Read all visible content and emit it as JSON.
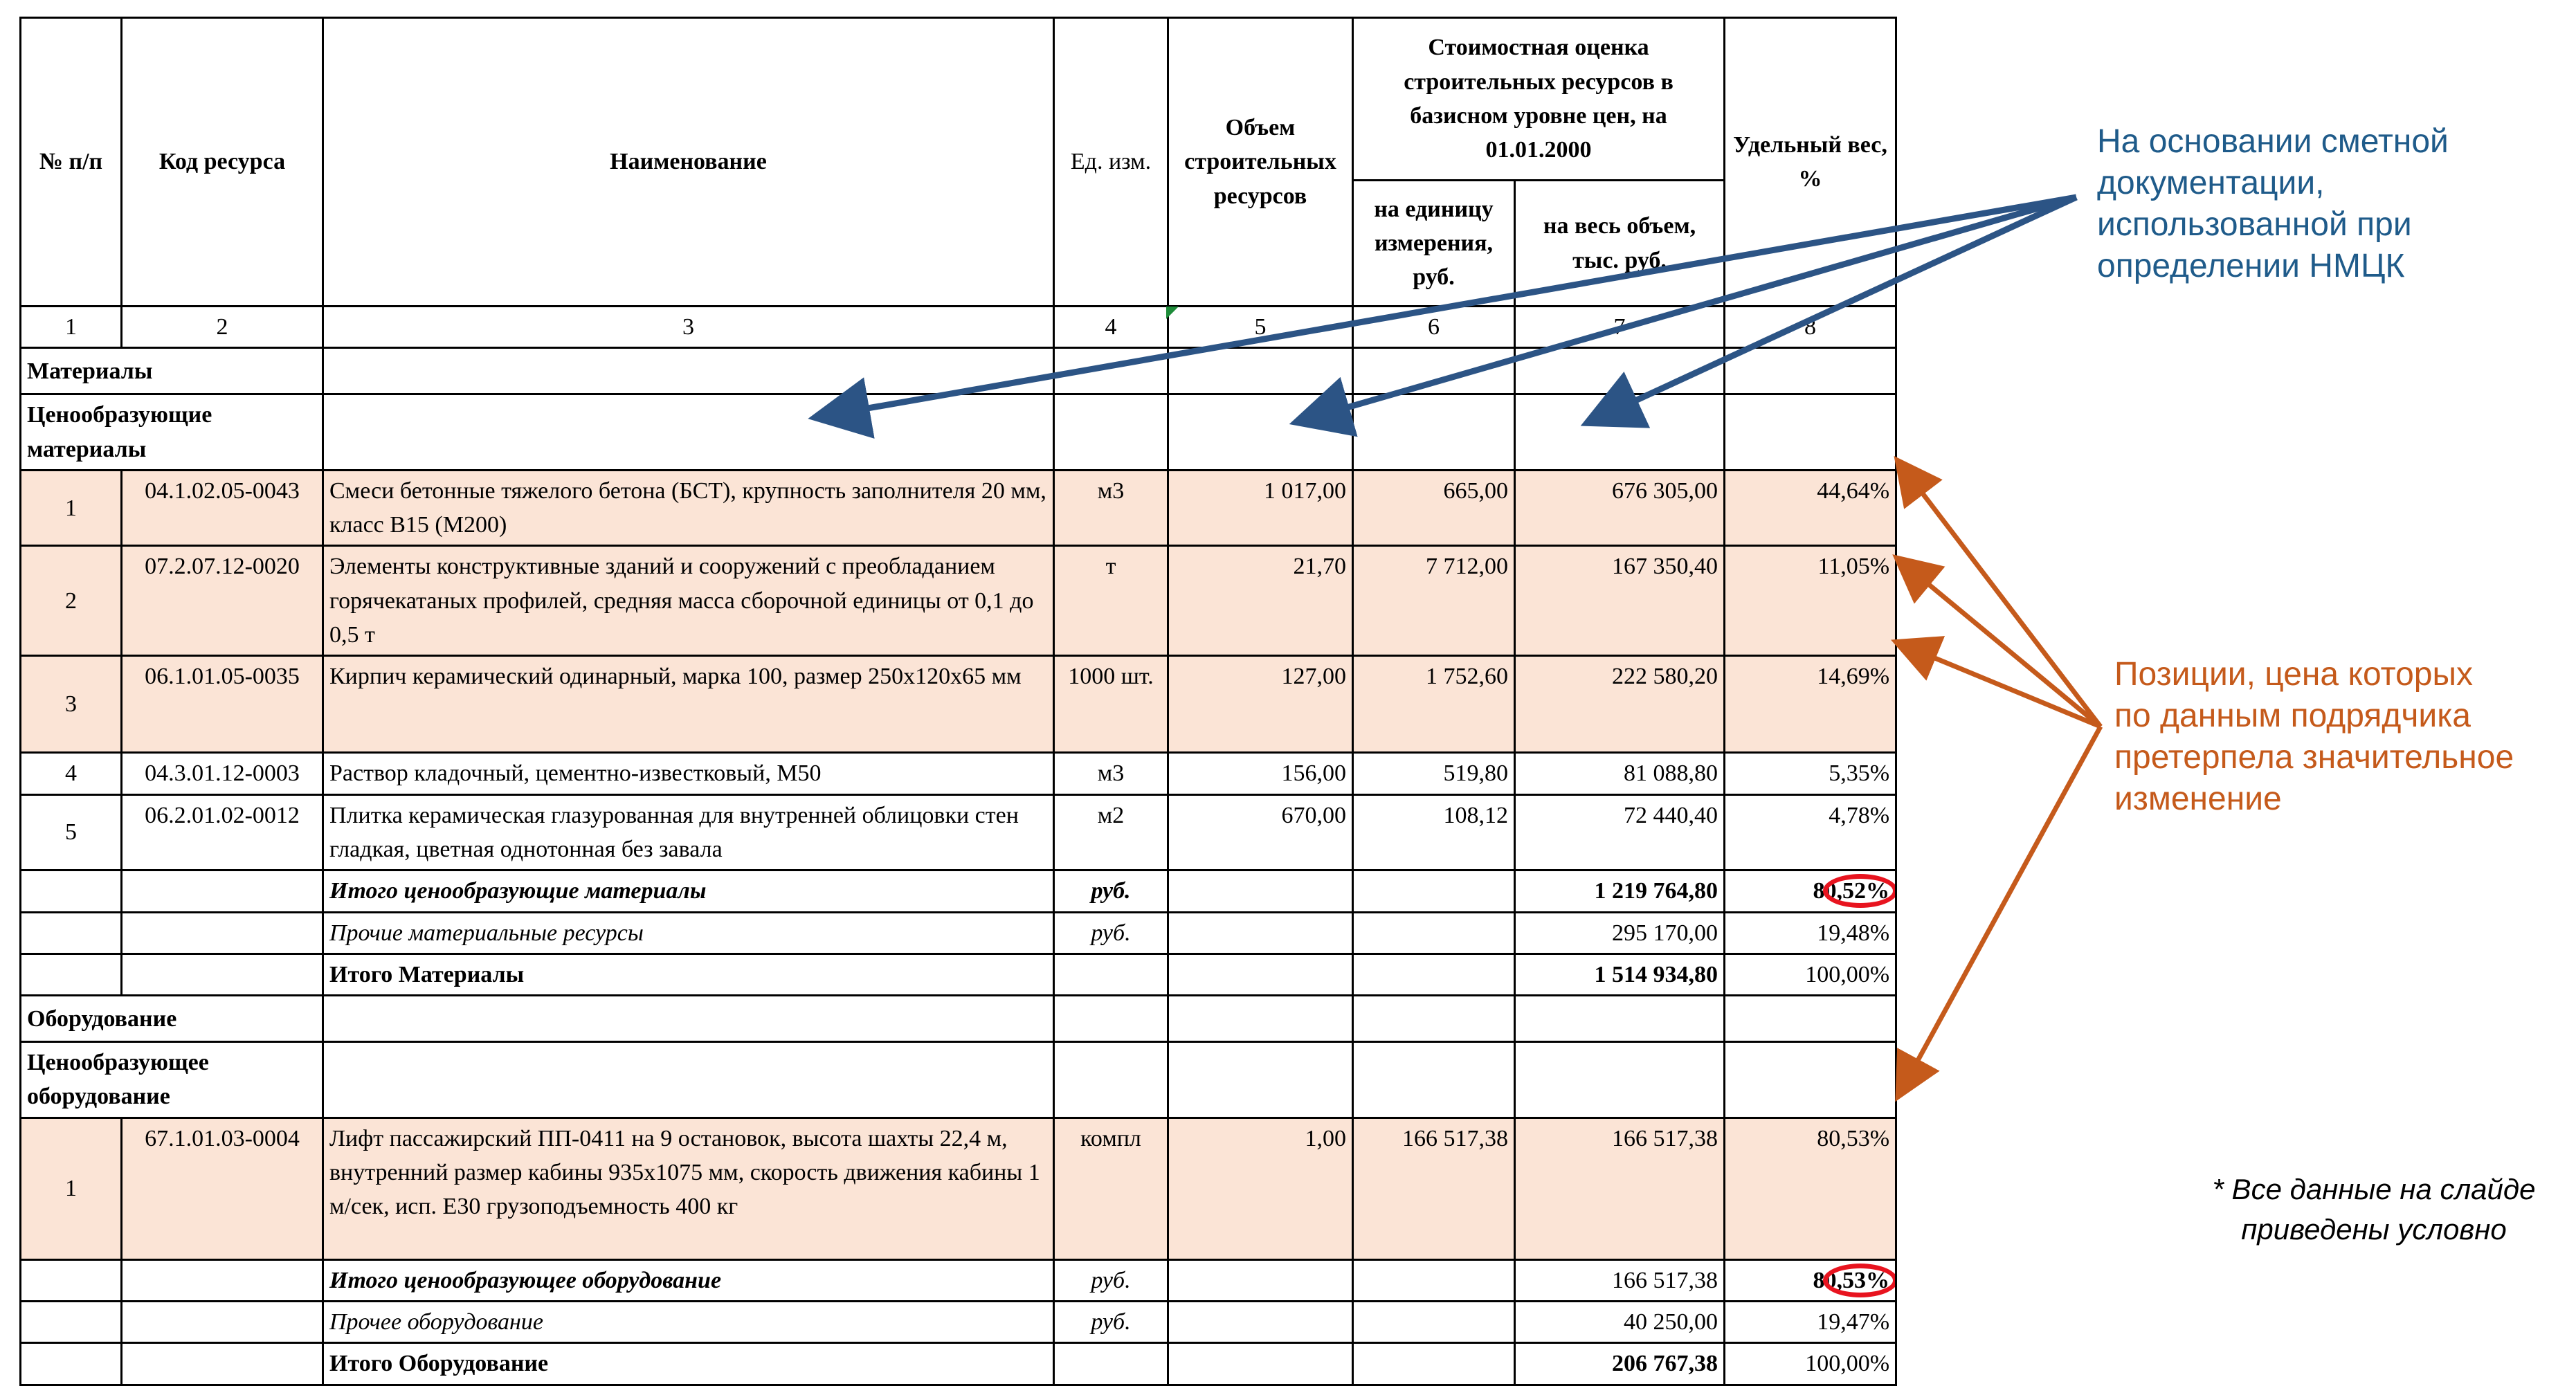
{
  "header": {
    "col_num": "№ п/п",
    "col_code": "Код ресурса",
    "col_name": "Наименование",
    "col_unit": "Ед. изм.",
    "col_volume": "Объем строительных ресурсов",
    "col_cost_group": "Стоимостная оценка строительных ресурсов в базисном уровне цен, на 01.01.2000",
    "col_unit_price": "на единицу измерения, руб.",
    "col_total": "на весь объем, тыс. руб.",
    "col_weight": "Удельный вес, %"
  },
  "column_numbers": [
    "1",
    "2",
    "3",
    "4",
    "5",
    "6",
    "7",
    "8"
  ],
  "materials": {
    "section": "Материалы",
    "subsection": "Ценообразующие материалы",
    "rows": [
      {
        "n": "1",
        "code": "04.1.02.05-0043",
        "name": "Смеси бетонные тяжелого бетона (БСТ), крупность заполнителя 20 мм, класс B15 (М200)",
        "unit": "м3",
        "volume": "1 017,00",
        "price": "665,00",
        "total": "676 305,00",
        "weight": "44,64%",
        "highlight": true
      },
      {
        "n": "2",
        "code": "07.2.07.12-0020",
        "name": "Элементы конструктивные зданий и сооружений с преобладанием горячекатаных профилей, средняя масса сборочной единицы от 0,1 до 0,5 т",
        "unit": "т",
        "volume": "21,70",
        "price": "7 712,00",
        "total": "167 350,40",
        "weight": "11,05%",
        "highlight": true
      },
      {
        "n": "3",
        "code": "06.1.01.05-0035",
        "name": "Кирпич керамический одинарный, марка 100, размер 250х120х65 мм",
        "unit": "1000 шт.",
        "volume": "127,00",
        "price": "1 752,60",
        "total": "222 580,20",
        "weight": "14,69%",
        "highlight": true
      },
      {
        "n": "4",
        "code": "04.3.01.12-0003",
        "name": "Раствор кладочный, цементно-известковый, М50",
        "unit": "м3",
        "volume": "156,00",
        "price": "519,80",
        "total": "81 088,80",
        "weight": "5,35%",
        "highlight": false
      },
      {
        "n": "5",
        "code": "06.2.01.02-0012",
        "name": "Плитка керамическая глазурованная для внутренней облицовки стен гладкая, цветная однотонная без завала",
        "unit": "м2",
        "volume": "670,00",
        "price": "108,12",
        "total": "72 440,40",
        "weight": "4,78%",
        "highlight": false
      }
    ],
    "subtotal": {
      "label": "Итого ценообразующие материалы",
      "unit": "руб.",
      "total": "1 219 764,80",
      "weight": "80,52%"
    },
    "other": {
      "label": "Прочие материальные ресурсы",
      "unit": "руб.",
      "total": "295 170,00",
      "weight": "19,48%"
    },
    "total": {
      "label": "Итого Материалы",
      "total": "1 514 934,80",
      "weight": "100,00%"
    }
  },
  "equipment": {
    "section": "Оборудование",
    "subsection": "Ценообразующее оборудование",
    "rows": [
      {
        "n": "1",
        "code": "67.1.01.03-0004",
        "name": "Лифт пассажирский ПП-0411 на 9 остановок, высота шахты 22,4 м, внутренний размер кабины 935х1075 мм, скорость движения кабины 1 м/сек, исп. Е30 грузоподъемность 400 кг",
        "unit": "компл",
        "volume": "1,00",
        "price": "166 517,38",
        "total": "166 517,38",
        "weight": "80,53%",
        "highlight": true
      }
    ],
    "subtotal": {
      "label": "Итого ценообразующее оборудование",
      "unit": "руб.",
      "total": "166 517,38",
      "weight": "80,53%"
    },
    "other": {
      "label": "Прочее оборудование",
      "unit": "руб.",
      "total": "40 250,00",
      "weight": "19,47%"
    },
    "total": {
      "label": "Итого Оборудование",
      "total": "206 767,38",
      "weight": "100,00%"
    }
  },
  "annotations": {
    "blue_note": "На основании сметной\nдокументации,\nиспользованной при\nопределении НМЦК",
    "orange_note": "Позиции, цена которых\nпо данным подрядчика\nпретерпела значительное\nизменение",
    "footnote": "* Все данные на слайде\nприведены условно"
  },
  "colors": {
    "highlight_row": "#fbe4d6",
    "blue_arrow": "#2c5485",
    "orange_arrow": "#c55a1b",
    "red_ring": "#e8141f"
  }
}
